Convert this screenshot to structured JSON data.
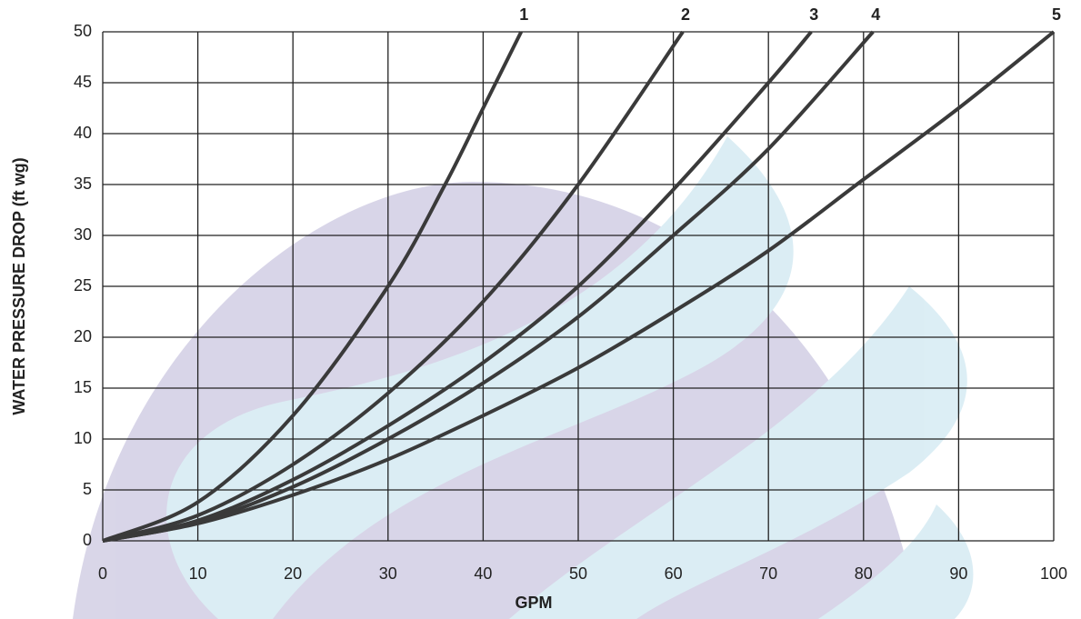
{
  "chart_data": {
    "type": "line",
    "xlabel": "GPM",
    "ylabel": "WATER PRESSURE DROP (ft  wg)",
    "xlim": [
      0,
      100
    ],
    "xticks": [
      0,
      10,
      20,
      30,
      40,
      50,
      60,
      70,
      80,
      90,
      100
    ],
    "ylim": [
      0,
      50
    ],
    "yticks": [
      0,
      5,
      10,
      15,
      20,
      25,
      30,
      35,
      40,
      45,
      50
    ],
    "grid": true,
    "series": [
      {
        "name": "1",
        "color": "#3a3a3a",
        "x": [
          0,
          10,
          20,
          30,
          36,
          40,
          44
        ],
        "values": [
          0,
          3.8,
          12.3,
          25,
          35,
          42.5,
          50
        ]
      },
      {
        "name": "2",
        "color": "#3a3a3a",
        "x": [
          0,
          10,
          20,
          30,
          40,
          50,
          61
        ],
        "values": [
          0,
          2.5,
          7.5,
          14.5,
          23.5,
          35,
          50
        ]
      },
      {
        "name": "3",
        "color": "#3a3a3a",
        "x": [
          0,
          10,
          20,
          30,
          40,
          50,
          60,
          70,
          74.5
        ],
        "values": [
          0,
          2,
          6,
          11.3,
          17.5,
          25,
          34.5,
          45,
          50
        ]
      },
      {
        "name": "4",
        "color": "#3a3a3a",
        "x": [
          0,
          10,
          20,
          30,
          40,
          50,
          60,
          70,
          81
        ],
        "values": [
          0,
          1.8,
          5.3,
          10,
          15.5,
          22,
          30,
          38.5,
          50
        ]
      },
      {
        "name": "5",
        "color": "#3a3a3a",
        "x": [
          0,
          10,
          20,
          30,
          40,
          50,
          60,
          70,
          80,
          90,
          100
        ],
        "values": [
          0,
          1.7,
          4.5,
          8,
          12.3,
          17,
          22.5,
          28.5,
          35.5,
          42.5,
          50
        ]
      }
    ]
  }
}
